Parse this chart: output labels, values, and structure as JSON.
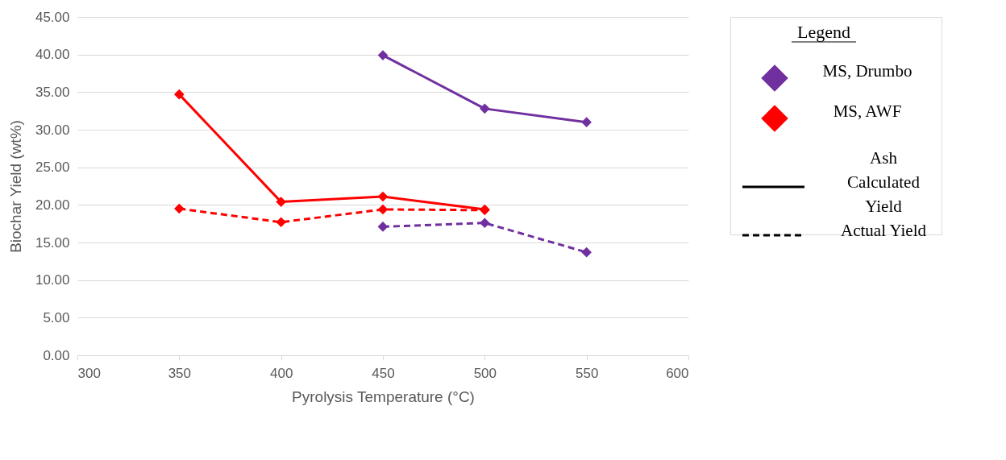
{
  "chart_data": {
    "type": "line",
    "xlabel": "Pyrolysis Temperature (°C)",
    "ylabel": "Biochar Yield (wt%)",
    "legend_title": "Legend",
    "legend": "right",
    "xlim": [
      300,
      600
    ],
    "xticks": [
      300,
      350,
      400,
      450,
      500,
      550,
      600
    ],
    "ylim": [
      0,
      45
    ],
    "yticks": [
      {
        "value": 0,
        "label": "0.00"
      },
      {
        "value": 5,
        "label": "5.00"
      },
      {
        "value": 10,
        "label": "10.00"
      },
      {
        "value": 15,
        "label": "15.00"
      },
      {
        "value": 20,
        "label": "20.00"
      },
      {
        "value": 25,
        "label": "25.00"
      },
      {
        "value": 30,
        "label": "30.00"
      },
      {
        "value": 35,
        "label": "35.00"
      },
      {
        "value": 40,
        "label": "40.00"
      },
      {
        "value": 45,
        "label": "45.00"
      }
    ],
    "grid": "y",
    "marker": "diamond",
    "annotations": [
      "Ash Calculated Yield",
      "Actual Yield"
    ],
    "series": [
      {
        "name": "MS, Drumbo",
        "color": "#7030a0",
        "line_style": "solid",
        "x": [
          450,
          500,
          550
        ],
        "values": [
          39.9,
          32.8,
          31.0
        ]
      },
      {
        "name": "MS, AWF",
        "color": "#ff0000",
        "line_style": "solid",
        "x": [
          350,
          400,
          450,
          500
        ],
        "values": [
          34.7,
          20.4,
          21.1,
          19.4
        ]
      },
      {
        "color": "#ff0000",
        "line_style": "dashed",
        "x": [
          350,
          400,
          450,
          500
        ],
        "values": [
          19.5,
          17.7,
          19.4,
          19.3
        ]
      },
      {
        "color": "#7030a0",
        "line_style": "dashed",
        "x": [
          450,
          500,
          550
        ],
        "values": [
          17.1,
          17.6,
          13.7
        ]
      }
    ]
  }
}
